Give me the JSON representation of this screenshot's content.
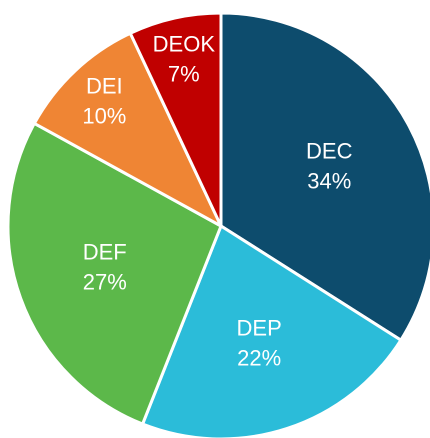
{
  "chart_data": {
    "type": "pie",
    "categories": [
      "DEC",
      "DEP",
      "DEF",
      "DEI",
      "DEOK"
    ],
    "values": [
      34,
      22,
      27,
      10,
      7
    ],
    "value_labels": [
      "34%",
      "22%",
      "27%",
      "10%",
      "7%"
    ],
    "colors": [
      "#0d4c6d",
      "#2bbcd9",
      "#5cb84a",
      "#ef8534",
      "#c00000"
    ]
  }
}
